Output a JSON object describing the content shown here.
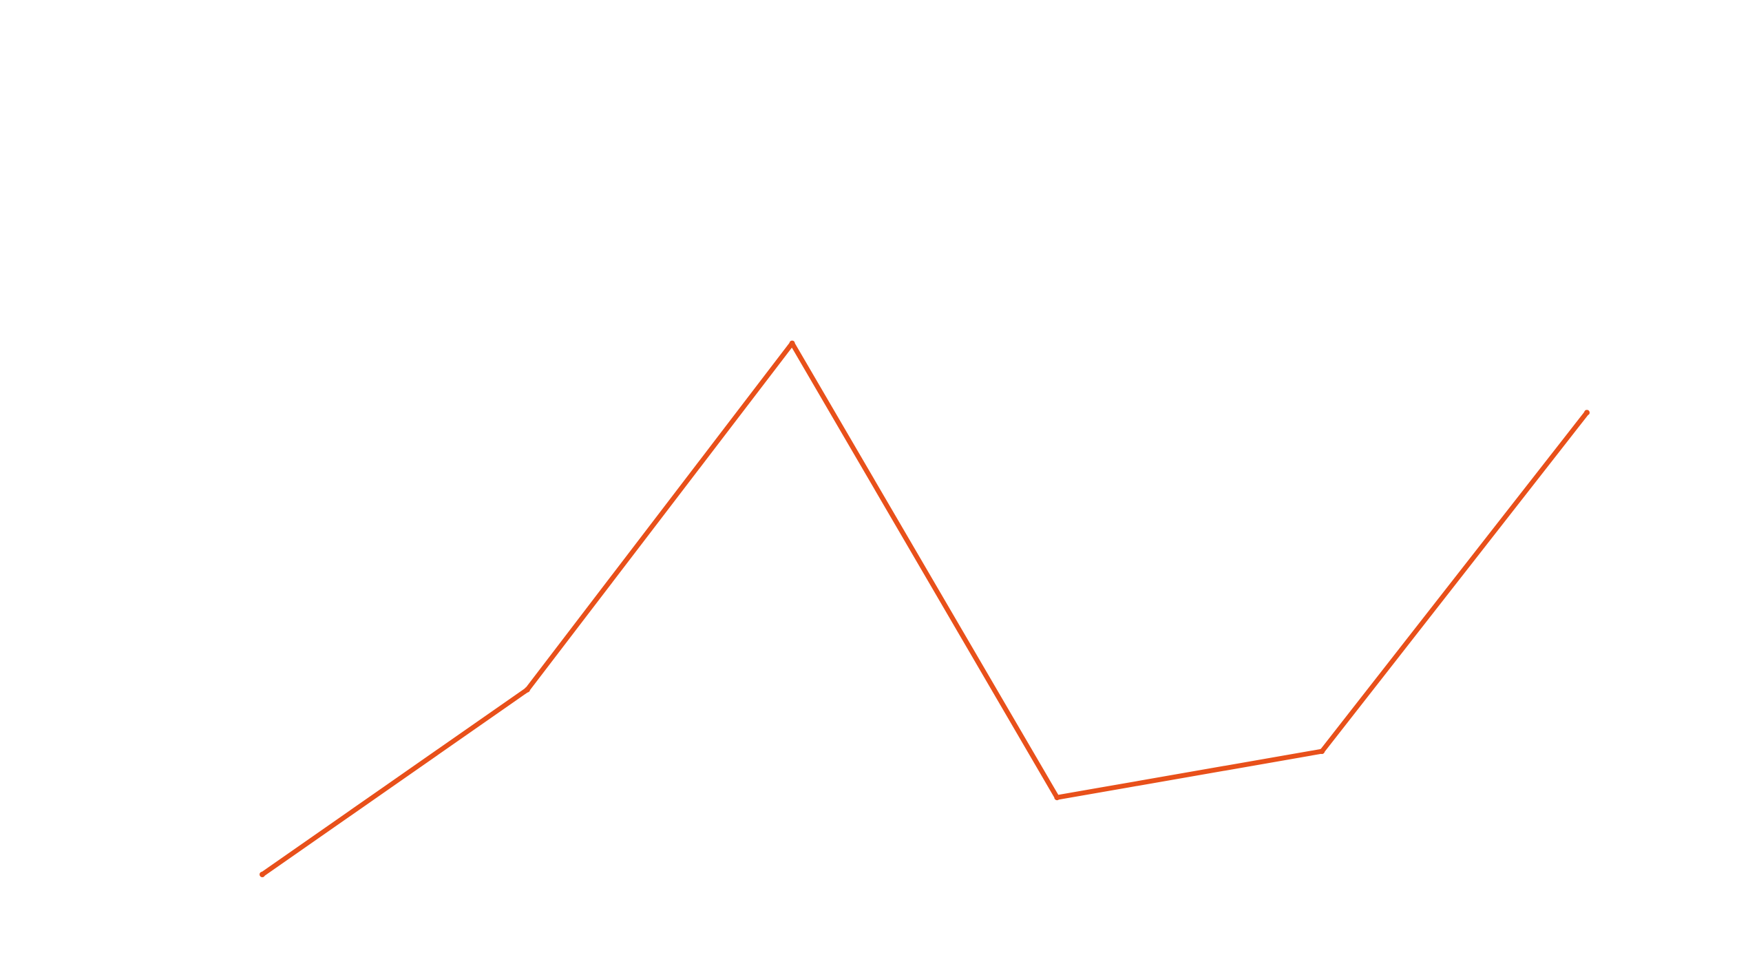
{
  "chart_data": {
    "type": "line",
    "title": "",
    "xlabel": "",
    "ylabel": "",
    "x": [
      1,
      2,
      3,
      4,
      5,
      6
    ],
    "series": [
      {
        "values": [
          0,
          24,
          69,
          10,
          16,
          60
        ],
        "color": "#E8501A"
      }
    ],
    "xlim": [
      1,
      6
    ],
    "ylim": [
      0,
      100
    ],
    "grid": false,
    "axes_visible": false,
    "legend": "none"
  }
}
